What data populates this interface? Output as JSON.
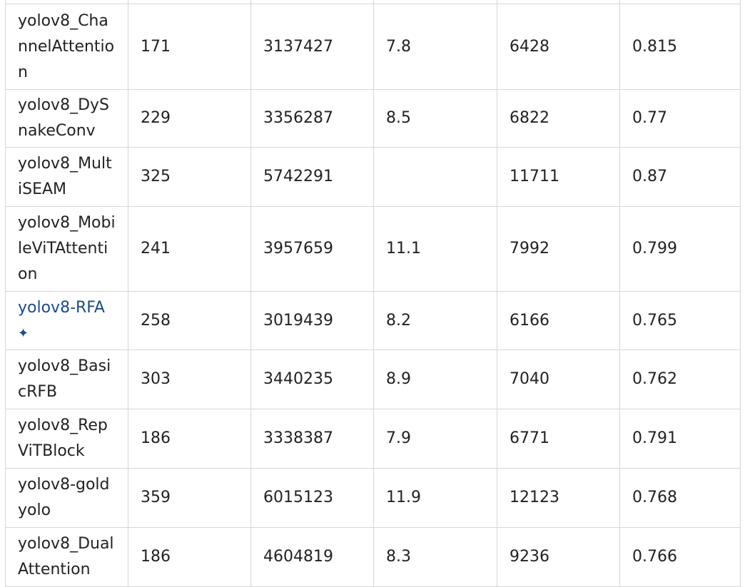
{
  "table": {
    "rows": [
      {
        "name": "yolov8_ChannelAttention",
        "c2": "171",
        "c3": "3137427",
        "c4": "7.8",
        "c5": "6428",
        "c6": "0.815"
      },
      {
        "name": "yolov8_DySnakeConv",
        "c2": "229",
        "c3": "3356287",
        "c4": "8.5",
        "c5": "6822",
        "c6": "0.77"
      },
      {
        "name": "yolov8_MultiSEAM",
        "c2": "325",
        "c3": "5742291",
        "c4": "",
        "c5": "11711",
        "c6": "0.87"
      },
      {
        "name": "yolov8_MobileViTAttention",
        "c2": "241",
        "c3": "3957659",
        "c4": "11.1",
        "c5": "7992",
        "c6": "0.799"
      },
      {
        "name": "yolov8-RFA",
        "sparkle": "✦",
        "c2": "258",
        "c3": "3019439",
        "c4": "8.2",
        "c5": "6166",
        "c6": "0.765"
      },
      {
        "name": "yolov8_BasicRFB",
        "c2": "303",
        "c3": "3440235",
        "c4": "8.9",
        "c5": "7040",
        "c6": "0.762"
      },
      {
        "name": "yolov8_RepViTBlock",
        "c2": "186",
        "c3": "3338387",
        "c4": "7.9",
        "c5": "6771",
        "c6": "0.791"
      },
      {
        "name": "yolov8-goldyolo",
        "c2": "359",
        "c3": "6015123",
        "c4": "11.9",
        "c5": "12123",
        "c6": "0.768"
      },
      {
        "name": "yolov8_DualAttention",
        "c2": "186",
        "c3": "4604819",
        "c4": "8.3",
        "c5": "9236",
        "c6": "0.766"
      }
    ]
  },
  "icons": {
    "rfa_link_icon": "sparkle-icon"
  },
  "colors": {
    "link": "#1a4b8c",
    "text": "#222222",
    "border": "#d6d6d6"
  }
}
